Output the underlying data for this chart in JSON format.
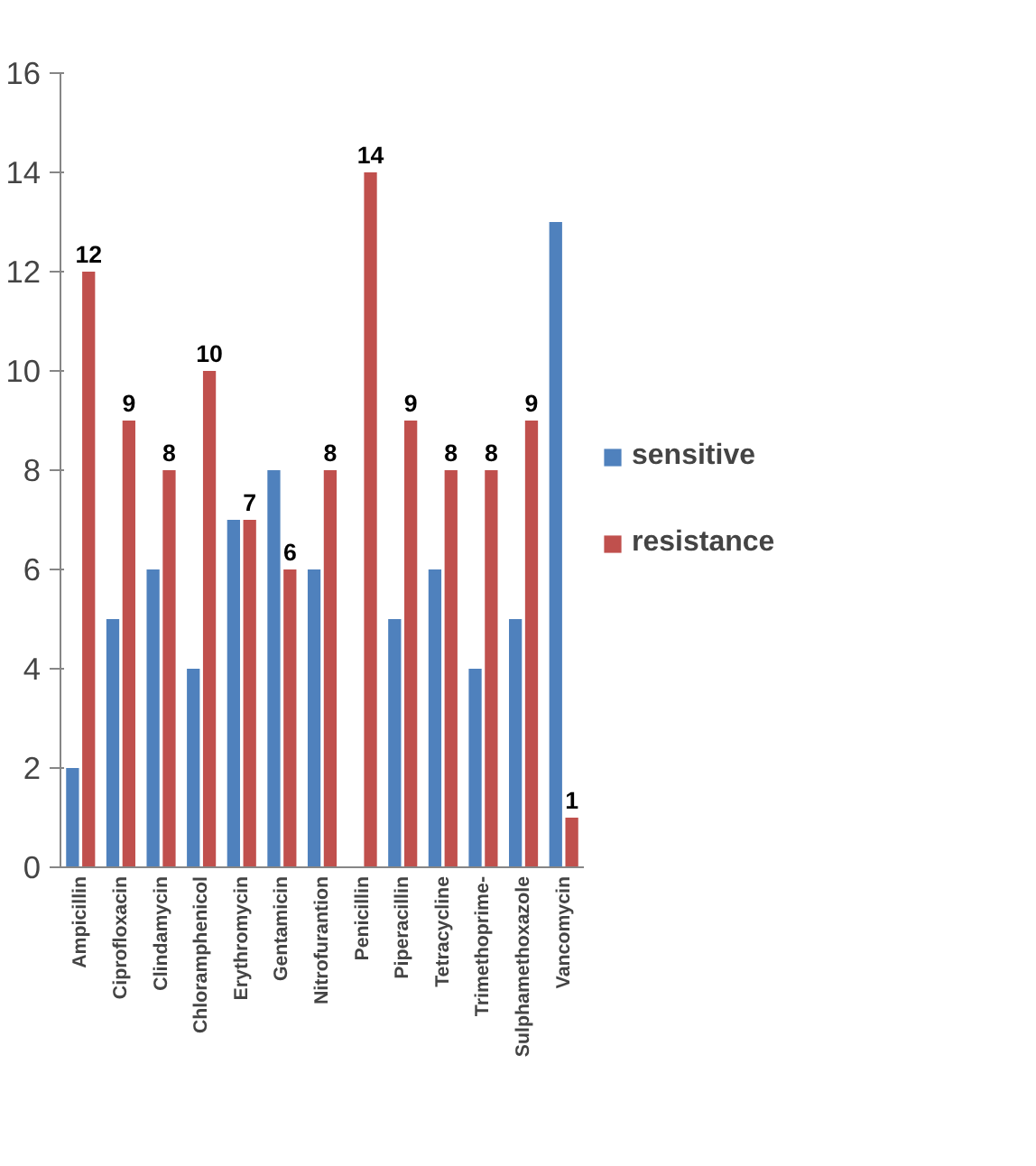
{
  "chart_data": {
    "type": "bar",
    "categories": [
      "Ampicillin",
      "Ciprofloxacin",
      "Clindamycin",
      "Chloramphenicol",
      "Erythromycin",
      "Gentamicin",
      "Nitrofurantion",
      "Penicillin",
      "Piperacillin",
      "Tetracycline",
      "Trimethoprime-",
      "Sulphamethoxazole",
      "Vancomycin"
    ],
    "series": [
      {
        "name": "sensitive",
        "color": "#4f81bd",
        "values": [
          2,
          5,
          6,
          4,
          7,
          8,
          6,
          0,
          5,
          6,
          4,
          5,
          13
        ]
      },
      {
        "name": "resistance",
        "color": "#c0504d",
        "values": [
          12,
          9,
          8,
          10,
          7,
          6,
          8,
          14,
          9,
          8,
          8,
          9,
          1
        ],
        "value_labels": [
          "12",
          "9",
          "8",
          "10",
          "7",
          "6",
          "8",
          "14",
          "9",
          "8",
          "8",
          "9",
          "1"
        ]
      }
    ],
    "ylim": [
      0,
      16
    ],
    "yticks": [
      0,
      2,
      4,
      6,
      8,
      10,
      12,
      14,
      16
    ],
    "grid": false,
    "legend": "right"
  }
}
